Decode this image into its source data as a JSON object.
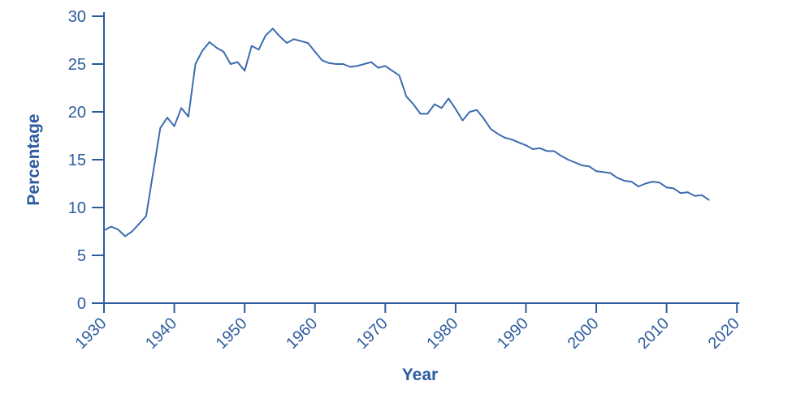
{
  "page": {
    "background": "#ffffff"
  },
  "chart_data": {
    "type": "line",
    "title": "",
    "xlabel": "Year",
    "ylabel": "Percentage",
    "x_ticks": [
      1930,
      1940,
      1950,
      1960,
      1970,
      1980,
      1990,
      2000,
      2010,
      2020
    ],
    "y_ticks": [
      0,
      5,
      10,
      15,
      20,
      25,
      30
    ],
    "xlim": [
      1930,
      2020
    ],
    "ylim": [
      0,
      30
    ],
    "grid": false,
    "legend": "none",
    "axis_color": "#2E5C9E",
    "line_color": "#3C6CAE",
    "series": [
      {
        "name": "Percentage",
        "x": [
          1930,
          1931,
          1932,
          1933,
          1934,
          1935,
          1936,
          1937,
          1938,
          1939,
          1940,
          1941,
          1942,
          1943,
          1944,
          1945,
          1946,
          1947,
          1948,
          1949,
          1950,
          1951,
          1952,
          1953,
          1954,
          1955,
          1956,
          1957,
          1958,
          1959,
          1960,
          1961,
          1962,
          1963,
          1964,
          1965,
          1966,
          1967,
          1968,
          1969,
          1970,
          1971,
          1972,
          1973,
          1974,
          1975,
          1976,
          1977,
          1978,
          1979,
          1980,
          1981,
          1982,
          1983,
          1984,
          1985,
          1986,
          1987,
          1988,
          1989,
          1990,
          1991,
          1992,
          1993,
          1994,
          1995,
          1996,
          1997,
          1998,
          1999,
          2000,
          2001,
          2002,
          2003,
          2004,
          2005,
          2006,
          2007,
          2008,
          2009,
          2010,
          2011,
          2012,
          2013,
          2014,
          2015,
          2016
        ],
        "values": [
          7.6,
          8.0,
          7.7,
          7.0,
          7.5,
          8.3,
          9.1,
          13.7,
          18.3,
          19.4,
          18.5,
          20.4,
          19.5,
          25.0,
          26.4,
          27.3,
          26.7,
          26.3,
          25.0,
          25.2,
          24.3,
          26.9,
          26.5,
          28.0,
          28.7,
          27.9,
          27.2,
          27.6,
          27.4,
          27.2,
          26.3,
          25.4,
          25.1,
          25.0,
          25.0,
          24.7,
          24.8,
          25.0,
          25.2,
          24.6,
          24.8,
          24.3,
          23.8,
          21.6,
          20.8,
          19.8,
          19.8,
          20.8,
          20.4,
          21.4,
          20.3,
          19.1,
          20.0,
          20.2,
          19.3,
          18.2,
          17.7,
          17.3,
          17.1,
          16.8,
          16.5,
          16.1,
          16.2,
          15.9,
          15.9,
          15.4,
          15.0,
          14.7,
          14.4,
          14.3,
          13.8,
          13.7,
          13.6,
          13.1,
          12.8,
          12.7,
          12.2,
          12.5,
          12.7,
          12.6,
          12.1,
          12.0,
          11.5,
          11.6,
          11.2,
          11.3,
          10.8
        ]
      }
    ]
  }
}
